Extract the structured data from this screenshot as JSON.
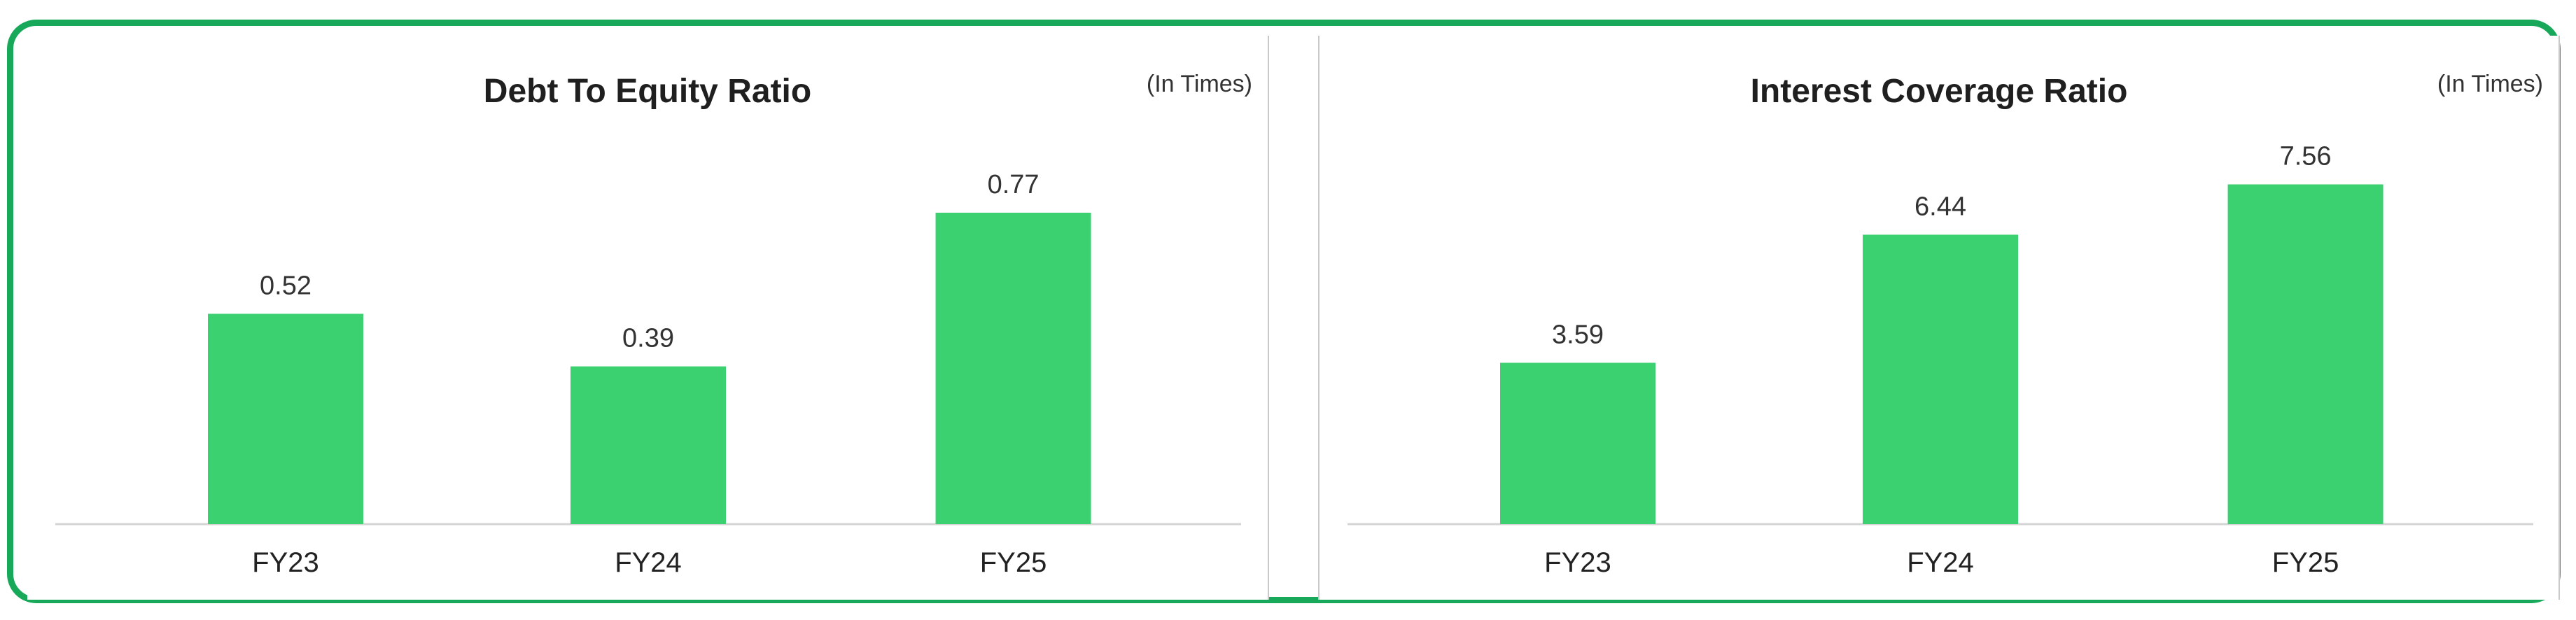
{
  "colors": {
    "frame": "#18a85a",
    "bar": "#3cd170"
  },
  "chart_data": [
    {
      "type": "bar",
      "title": "Debt To Equity Ratio",
      "unit_label": "(In Times)",
      "categories": [
        "FY23",
        "FY24",
        "FY25"
      ],
      "values": [
        0.52,
        0.39,
        0.77
      ],
      "value_labels": [
        "0.52",
        "0.39",
        "0.77"
      ],
      "ylim": [
        0,
        1.0
      ]
    },
    {
      "type": "bar",
      "title": "Interest Coverage Ratio",
      "unit_label": "(In Times)",
      "categories": [
        "FY23",
        "FY24",
        "FY25"
      ],
      "values": [
        3.59,
        6.44,
        7.56
      ],
      "value_labels": [
        "3.59",
        "6.44",
        "7.56"
      ],
      "ylim": [
        0,
        9.0
      ]
    }
  ]
}
